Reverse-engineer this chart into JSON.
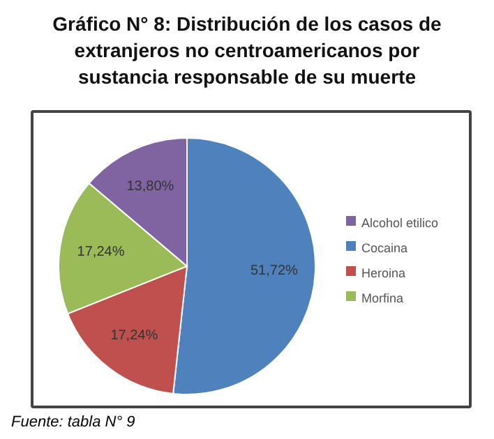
{
  "chart_data": {
    "type": "pie",
    "title": "Gráfico N° 8: Distribución de los casos de extranjeros no centroamericanos por sustancia responsable de su muerte",
    "categories": [
      "Cocaina",
      "Heroina",
      "Morfina",
      "Alcohol etilico"
    ],
    "values": [
      51.72,
      17.24,
      17.24,
      13.8
    ],
    "value_labels": [
      "51,72%",
      "17,24%",
      "17,24%",
      "13,80%"
    ],
    "colors": [
      "#4f81bd",
      "#c0504d",
      "#9bbb59",
      "#8064a2"
    ],
    "legend": "right",
    "annotations": [
      "Fuente: tabla N° 9"
    ]
  }
}
